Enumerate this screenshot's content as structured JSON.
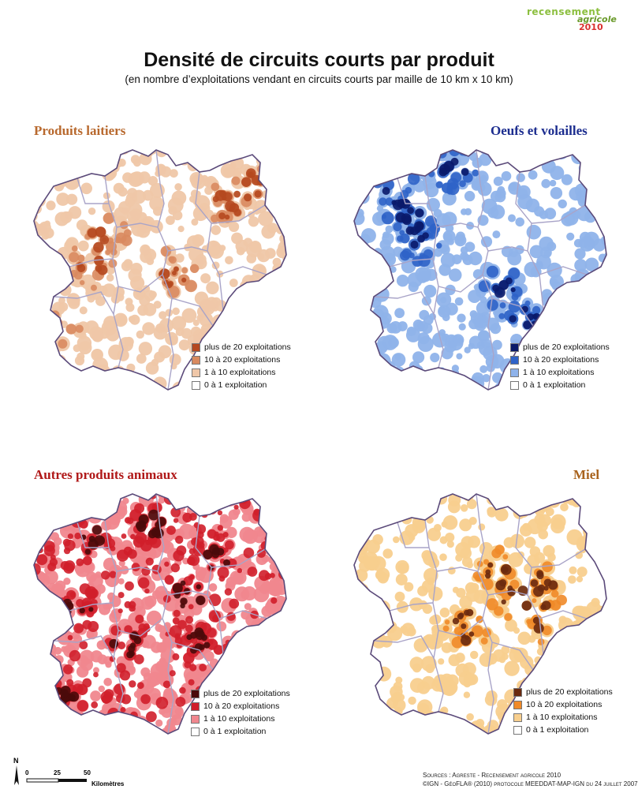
{
  "logo": {
    "line1": "recensement",
    "line2": "agricole",
    "line3": "2010"
  },
  "header": {
    "title": "Densité de circuits courts par produit",
    "subtitle": "(en nombre d’exploitations vendant en circuits courts par maille de 10 km x 10 km)"
  },
  "legend_labels": [
    "plus de 20 exploitations",
    "10 à 20 exploitations",
    "1 à 10 exploitations",
    "0 à 1 exploitation"
  ],
  "maps": [
    {
      "title": "Produits laitiers",
      "title_color": "#b8692e",
      "colors": [
        "#b5481f",
        "#d98a5f",
        "#efc7a8",
        "#ffffff"
      ]
    },
    {
      "title": "Oeufs et volailles",
      "title_color": "#1c2d8f",
      "colors": [
        "#0a1a6a",
        "#2f63c8",
        "#8fb3ea",
        "#ffffff"
      ]
    },
    {
      "title": "Autres produits animaux",
      "title_color": "#b01818",
      "colors": [
        "#4a0a0a",
        "#d01e2a",
        "#f0878e",
        "#ffffff"
      ]
    },
    {
      "title": "Miel",
      "title_color": "#a8621c",
      "colors": [
        "#6a2a10",
        "#f08a28",
        "#f8cf8e",
        "#ffffff"
      ]
    }
  ],
  "scale": {
    "north": "N",
    "ticks": [
      "0",
      "25",
      "50"
    ],
    "unit": "Kilomètres"
  },
  "sources": {
    "line1": "Sources : Agreste - Recensement agricole 2010",
    "line2": "©IGN - GéoFLA® (2010) protocole MEEDDAT-MAP-IGN du 24 juillet 2007"
  }
}
